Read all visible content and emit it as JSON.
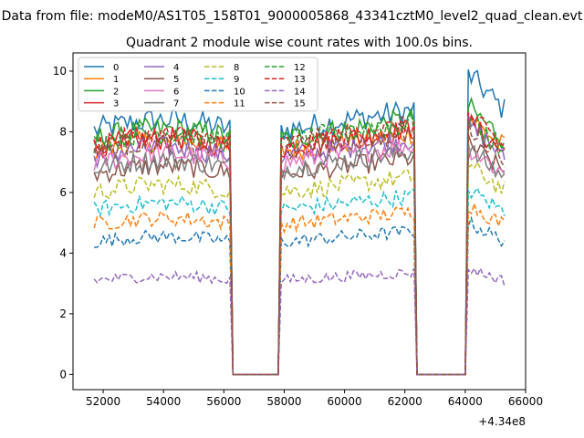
{
  "chart_data": {
    "type": "line",
    "suptitle": "Data from file: modeM0/AS1T05_158T01_9000005868_43341cztM0_level2_quad_clean.evt",
    "title": "Quadrant 2 module wise count rates with 100.0s bins.",
    "xlabel": "",
    "ylabel": "",
    "x_offset_label": "+4.34e8",
    "xlim": [
      51000,
      66000
    ],
    "ylim": [
      -0.5,
      10.6
    ],
    "xticks": [
      52000,
      54000,
      56000,
      58000,
      60000,
      62000,
      64000,
      66000
    ],
    "xtick_labels": [
      "52000",
      "54000",
      "56000",
      "58000",
      "60000",
      "62000",
      "64000",
      "66000"
    ],
    "yticks": [
      0,
      2,
      4,
      6,
      8,
      10
    ],
    "ytick_labels": [
      "0",
      "2",
      "4",
      "6",
      "8",
      "10"
    ],
    "grid": false,
    "legend_position": "top-left",
    "segments": [
      [
        51700,
        56200
      ],
      [
        57900,
        62300
      ],
      [
        64100,
        65300
      ]
    ],
    "gaps": [
      [
        56300,
        57800
      ],
      [
        62400,
        64000
      ]
    ],
    "series": [
      {
        "name": "0",
        "color": "#1f77b4",
        "dash": "solid",
        "level": 8.3,
        "end_level": 9.9
      },
      {
        "name": "1",
        "color": "#ff7f0e",
        "dash": "solid",
        "level": 7.6,
        "end_level": 8.5
      },
      {
        "name": "2",
        "color": "#2ca02c",
        "dash": "solid",
        "level": 8.0,
        "end_level": 8.8
      },
      {
        "name": "3",
        "color": "#d62728",
        "dash": "solid",
        "level": 7.7,
        "end_level": 8.3
      },
      {
        "name": "4",
        "color": "#9467bd",
        "dash": "solid",
        "level": 7.4,
        "end_level": 8.2
      },
      {
        "name": "5",
        "color": "#8c564b",
        "dash": "solid",
        "level": 6.8,
        "end_level": 7.6
      },
      {
        "name": "6",
        "color": "#e377c2",
        "dash": "solid",
        "level": 7.2,
        "end_level": 7.5
      },
      {
        "name": "7",
        "color": "#7f7f7f",
        "dash": "solid",
        "level": 7.0,
        "end_level": 7.4
      },
      {
        "name": "8",
        "color": "#bcbd22",
        "dash": "dashed",
        "level": 6.2,
        "end_level": 6.9
      },
      {
        "name": "9",
        "color": "#17becf",
        "dash": "dashed",
        "level": 5.6,
        "end_level": 6.1
      },
      {
        "name": "10",
        "color": "#1f77b4",
        "dash": "dashed",
        "level": 4.5,
        "end_level": 5.0
      },
      {
        "name": "11",
        "color": "#ff7f0e",
        "dash": "dashed",
        "level": 5.1,
        "end_level": 5.6
      },
      {
        "name": "12",
        "color": "#2ca02c",
        "dash": "dashed",
        "level": 7.9,
        "end_level": 8.4
      },
      {
        "name": "13",
        "color": "#d62728",
        "dash": "dashed",
        "level": 7.8,
        "end_level": 8.5
      },
      {
        "name": "14",
        "color": "#9467bd",
        "dash": "dashed",
        "level": 3.2,
        "end_level": 3.5
      },
      {
        "name": "15",
        "color": "#8c564b",
        "dash": "dashed",
        "level": 7.6,
        "end_level": 8.2
      }
    ]
  }
}
